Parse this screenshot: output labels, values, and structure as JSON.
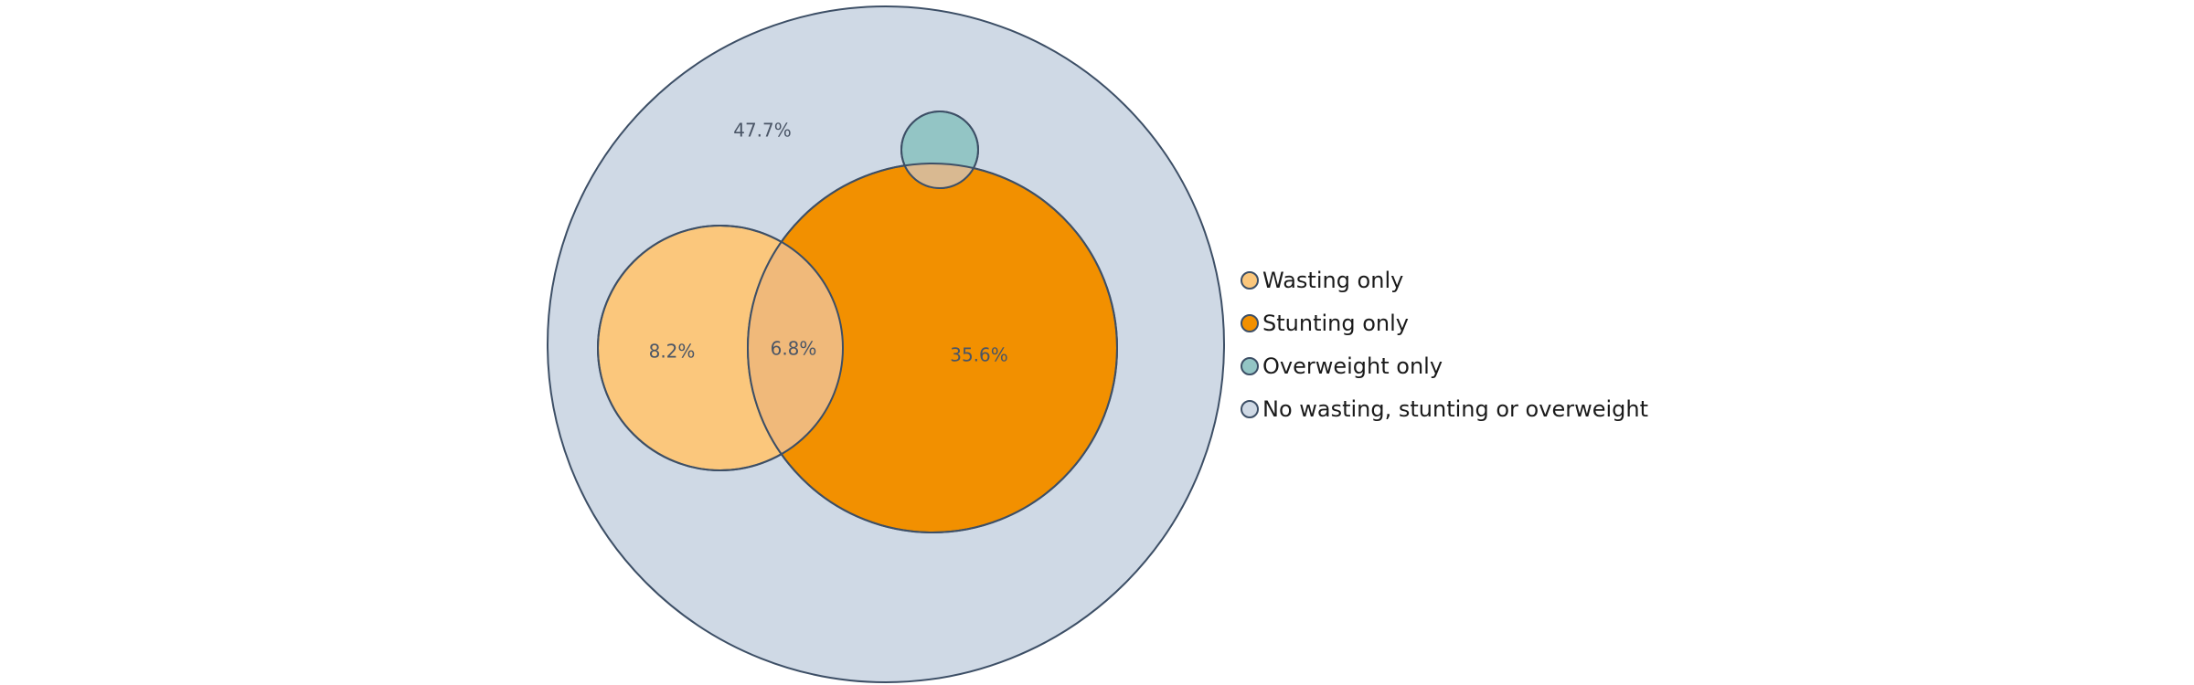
{
  "chart_data": {
    "type": "venn",
    "title": "",
    "sets": [
      {
        "name": "Wasting only",
        "color": "#fbc77c"
      },
      {
        "name": "Stunting only",
        "color": "#f29000"
      },
      {
        "name": "Overweight only",
        "color": "#93c5c5"
      },
      {
        "name": "No wasting, stunting or overweight",
        "color": "#cfd9e5"
      }
    ],
    "regions": [
      {
        "sets": [
          "No wasting, stunting or overweight"
        ],
        "value": 47.7,
        "label": "47.7%"
      },
      {
        "sets": [
          "Wasting only"
        ],
        "value": 8.2,
        "label": "8.2%"
      },
      {
        "sets": [
          "Wasting only",
          "Stunting only"
        ],
        "value": 6.8,
        "label": "6.8%"
      },
      {
        "sets": [
          "Stunting only"
        ],
        "value": 35.6,
        "label": "35.6%"
      }
    ],
    "overlap_colors": {
      "wasting_stunting": "#f0b97a",
      "stunting_overweight": "#d9b991"
    },
    "outline_color": "#3d4f66",
    "legend_position": "right"
  }
}
